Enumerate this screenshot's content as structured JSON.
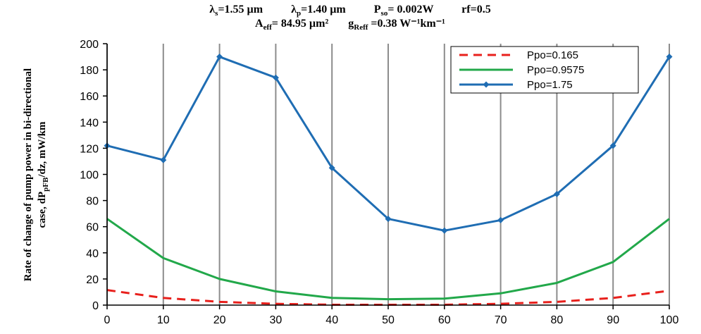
{
  "chart_data": {
    "type": "line",
    "title_line1": [
      {
        "base": "λ",
        "sub": "s",
        "rest": "=1.55 µm"
      },
      {
        "base": "λ",
        "sub": "p",
        "rest": "=1.40 µm"
      },
      {
        "base": "P",
        "sub": "so",
        "rest": "= 0.002W"
      },
      {
        "base": "rf=0.5",
        "sub": "",
        "rest": ""
      }
    ],
    "title_line2": [
      {
        "base": "A",
        "sub": "eff",
        "rest": "= 84.95 µm²"
      },
      {
        "base": "g",
        "sub": "Reff",
        "rest": " =0.38 W⁻¹km⁻¹"
      }
    ],
    "ylabel_line1": "Rate of change of pump power in bi-directional",
    "ylabel_line2_pre": "case, dP",
    "ylabel_line2_sub": "pFB",
    "ylabel_line2_post": "/dz, mW/km",
    "xlabel": "",
    "x": [
      0,
      10,
      20,
      30,
      40,
      50,
      60,
      70,
      80,
      90,
      100
    ],
    "xlim": [
      0,
      100
    ],
    "ylim": [
      0,
      200
    ],
    "xticks": [
      0,
      10,
      20,
      30,
      40,
      50,
      60,
      70,
      80,
      90,
      100
    ],
    "yticks": [
      0,
      20,
      40,
      60,
      80,
      100,
      120,
      140,
      160,
      180,
      200
    ],
    "grid": "vertical",
    "legend_position": "top-right",
    "series": [
      {
        "name": "Ppo=0.165",
        "color": "#e8201c",
        "style": "dashed",
        "marker": false,
        "values": [
          11.5,
          5.5,
          2.5,
          1,
          0.3,
          0.3,
          0.3,
          1,
          2.5,
          5.5,
          11
        ]
      },
      {
        "name": "Ppo=0.9575",
        "color": "#22a84a",
        "style": "solid",
        "marker": false,
        "values": [
          66,
          36,
          20,
          10.5,
          5.5,
          4.5,
          5,
          9,
          17,
          33,
          66
        ]
      },
      {
        "name": "Ppo=1.75",
        "color": "#1f6db3",
        "style": "solid",
        "marker": true,
        "values": [
          122,
          111,
          190,
          174,
          105,
          66,
          57,
          65,
          85,
          122,
          190
        ]
      }
    ]
  }
}
